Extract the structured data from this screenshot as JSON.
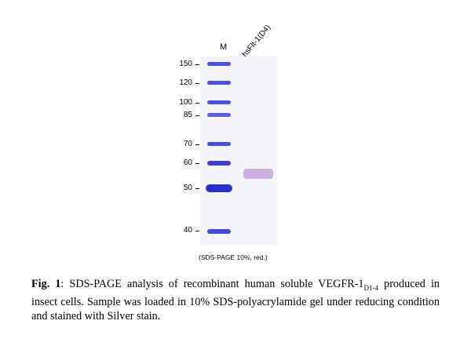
{
  "gel": {
    "lane_marker": "M",
    "lane_sample": "hsFlt-1(D4)",
    "mw_markers": [
      "150",
      "120",
      "100",
      "85",
      "70",
      "60",
      "50",
      "40"
    ],
    "note": "(SDS-PAGE 10%, red.)"
  },
  "caption": {
    "label": "Fig. 1",
    "text_before_sub": ": SDS-PAGE analysis of recombinant human soluble VEGFR-1",
    "subscript": "D1-4",
    "text_after_sub": " produced in insect cells. Sample was loaded in 10% SDS-polyacrylamide gel under reducing condition and stained with Silver stain."
  },
  "colors": {
    "marker_band": "#3a3fd6",
    "sample_band": "#c8a8de",
    "gel_background": "#f4f4fb"
  }
}
